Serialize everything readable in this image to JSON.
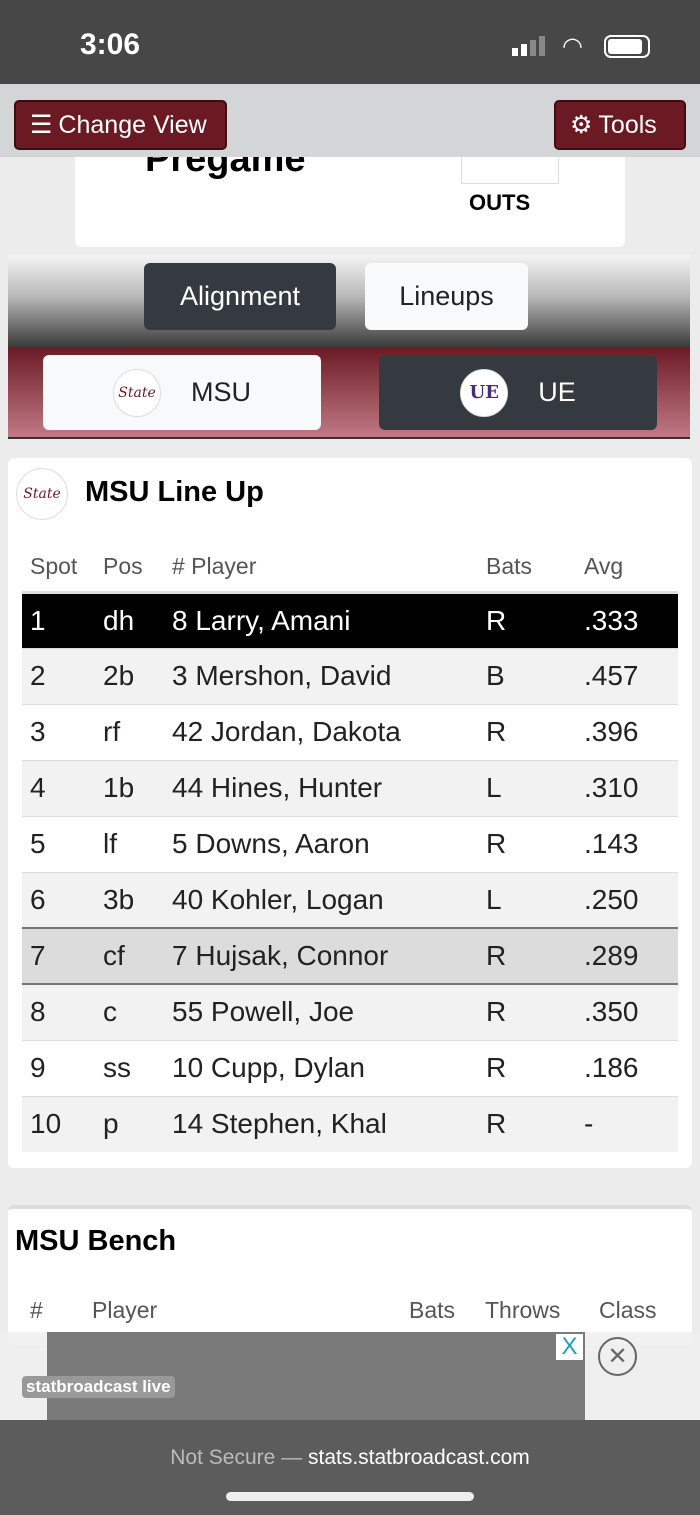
{
  "status_bar": {
    "time": "3:06"
  },
  "toolbar": {
    "change_view": "Change View",
    "tools": "Tools"
  },
  "scoreboard": {
    "status": "Pregame",
    "outs_label": "OUTS"
  },
  "view_tabs": [
    {
      "label": "Alignment",
      "active": true
    },
    {
      "label": "Lineups",
      "active": false
    }
  ],
  "teams": [
    {
      "label": "MSU",
      "logo": "State",
      "active": false
    },
    {
      "label": "UE",
      "logo": "UE",
      "active": true
    }
  ],
  "lineup": {
    "title": "MSU Line Up",
    "logo": "State",
    "headers": [
      "Spot",
      "Pos",
      "# Player",
      "Bats",
      "Avg"
    ],
    "rows": [
      [
        "1",
        "dh",
        "8 Larry, Amani",
        "R",
        ".333"
      ],
      [
        "2",
        "2b",
        "3 Mershon, David",
        "B",
        ".457"
      ],
      [
        "3",
        "rf",
        "42 Jordan, Dakota",
        "R",
        ".396"
      ],
      [
        "4",
        "1b",
        "44 Hines, Hunter",
        "L",
        ".310"
      ],
      [
        "5",
        "lf",
        "5 Downs, Aaron",
        "R",
        ".143"
      ],
      [
        "6",
        "3b",
        "40 Kohler, Logan",
        "L",
        ".250"
      ],
      [
        "7",
        "cf",
        "7 Hujsak, Connor",
        "R",
        ".289"
      ],
      [
        "8",
        "c",
        "55 Powell, Joe",
        "R",
        ".350"
      ],
      [
        "9",
        "ss",
        "10 Cupp, Dylan",
        "R",
        ".186"
      ],
      [
        "10",
        "p",
        "14 Stephen, Khal",
        "R",
        "-"
      ]
    ]
  },
  "bench": {
    "title": "MSU Bench",
    "headers": [
      "#",
      "Player",
      "Bats",
      "Throws",
      "Class"
    ]
  },
  "ad": {
    "brand": "statbroadcast live",
    "close": "X"
  },
  "browser": {
    "security": "Not Secure —",
    "url": "stats.statbroadcast.com"
  },
  "colors": {
    "maroon": "#6b1a24",
    "dark": "#343a40"
  }
}
